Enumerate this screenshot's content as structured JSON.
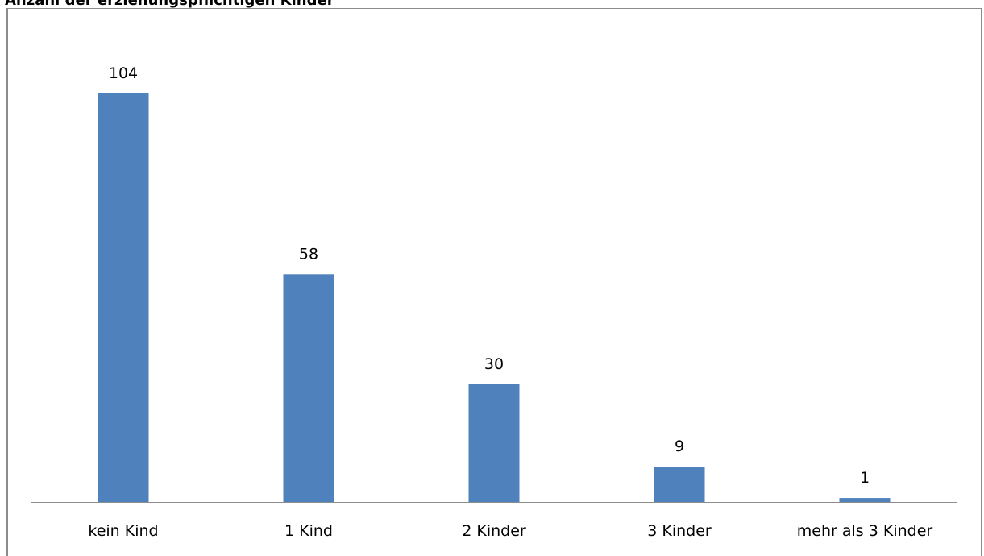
{
  "chart_data": {
    "type": "bar",
    "title": "Anzahl der erziehungspflichtigen Kinder",
    "categories": [
      "kein Kind",
      "1 Kind",
      "2 Kinder",
      "3 Kinder",
      "mehr als 3 Kinder"
    ],
    "values": [
      104,
      58,
      30,
      9,
      1
    ],
    "data_labels": [
      "104",
      "58",
      "30",
      "9",
      "1"
    ],
    "xlabel": "",
    "ylabel": "",
    "ylim": [
      0,
      104
    ],
    "grid": false,
    "legend": "none",
    "bar_color": "#4f81bd",
    "axis_color": "#8c8c8c"
  }
}
